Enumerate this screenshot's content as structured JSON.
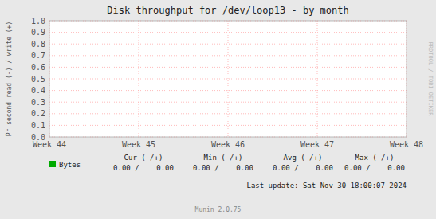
{
  "chart_data": {
    "type": "line",
    "title": "Disk throughput for /dev/loop13 - by month",
    "ylabel": "Pr second read (-) / write (+)",
    "categories": [
      "Week 44",
      "Week 45",
      "Week 46",
      "Week 47",
      "Week 48"
    ],
    "series": [
      {
        "name": "Bytes",
        "color": "#00aa00",
        "values": [
          null,
          null,
          null,
          null,
          null
        ]
      }
    ],
    "ylim": [
      0.0,
      1.0
    ],
    "yticks": [
      {
        "value": 0.0,
        "label": "0.0"
      },
      0.1,
      0.2,
      0.3,
      0.4,
      0.5,
      0.6,
      0.7,
      0.8,
      0.9,
      {
        "value": 1.0,
        "label": "1.0"
      }
    ],
    "grid": true,
    "legend": "bottom",
    "annotations": [
      "Cur (-/+)",
      "Min (-/+)",
      "Avg (-/+)",
      "Max (-/+)",
      "0.00 /    0.00",
      "0.00 /    0.00",
      "0.00 /    0.00",
      "0.00 /    0.00",
      "Last update: Sat Nov 30 18:00:07 2024",
      "Munin 2.0.75",
      "RRDTOOL / TOBI OETIKER"
    ]
  }
}
